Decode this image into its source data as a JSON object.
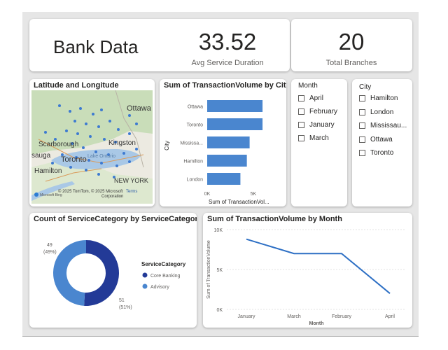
{
  "header": {
    "title": "Bank Data"
  },
  "kpis": {
    "avg_service_duration": {
      "value": "33.52",
      "label": "Avg Service Duration"
    },
    "total_branches": {
      "value": "20",
      "label": "Total Branches"
    }
  },
  "map": {
    "title": "Latitude and Longitude",
    "labels": {
      "ottawa": "Ottawa",
      "scarborough": "Scarborough",
      "kingston": "Kingston",
      "toronto": "Toronto",
      "saga": "sauga",
      "hamilton": "Hamilton",
      "newyork": "NEW YORK",
      "lake": "Lake Ontario"
    },
    "attribution": "© 2025 TomTom, © 2025 Microsoft Corporation",
    "attribution_line1": "© 2025 TomTom, © 2025 Microsoft",
    "attribution_line2": "Corporation",
    "terms": "Terms",
    "logo": "Microsoft Bing"
  },
  "slicers": {
    "month": {
      "title": "Month",
      "items": [
        "April",
        "February",
        "January",
        "March"
      ]
    },
    "city": {
      "title": "City",
      "items": [
        "Hamilton",
        "London",
        "Mississau...",
        "Ottawa",
        "Toronto"
      ]
    }
  },
  "charts": {
    "city_bar": {
      "title": "Sum of TransactionVolume by City"
    },
    "donut": {
      "title": "Count of ServiceCategory by ServiceCategory"
    },
    "month_line": {
      "title": "Sum of TransactionVolume by Month"
    }
  },
  "chart_data": [
    {
      "type": "bar",
      "orientation": "horizontal",
      "title": "Sum of TransactionVolume by City",
      "categories": [
        "Ottawa",
        "Toronto",
        "Mississa...",
        "Hamilton",
        "London"
      ],
      "values": [
        6000,
        6000,
        4600,
        4300,
        3600
      ],
      "xlabel": "Sum of TransactionVol...",
      "ylabel": "City",
      "xticks": [
        "0K",
        "5K"
      ],
      "xlim": [
        0,
        6300
      ],
      "color": "#4a86cf"
    },
    {
      "type": "pie",
      "style": "donut",
      "title": "Count of ServiceCategory by ServiceCategory",
      "legend_title": "ServiceCategory",
      "legend_position": "right",
      "series": [
        {
          "name": "Core Banking",
          "value": 51,
          "percent": "51%",
          "color": "#233a97"
        },
        {
          "name": "Advisory",
          "value": 49,
          "percent": "49%",
          "color": "#4a86cf"
        }
      ]
    },
    {
      "type": "line",
      "title": "Sum of TransactionVolume by Month",
      "x": [
        "January",
        "March",
        "February",
        "April"
      ],
      "values": [
        8800,
        7000,
        7000,
        2000
      ],
      "xlabel": "Month",
      "ylabel": "Sum of TransactionVolume",
      "yticks": [
        "0K",
        "5K",
        "10K"
      ],
      "ylim": [
        0,
        10000
      ],
      "color": "#2d6fc4"
    }
  ]
}
